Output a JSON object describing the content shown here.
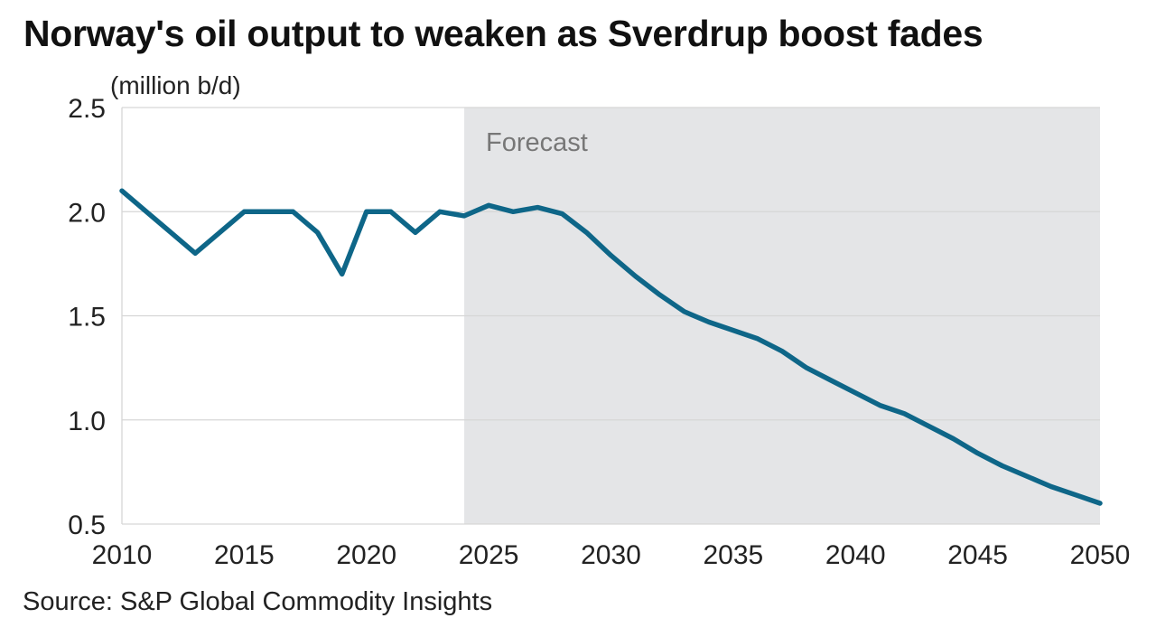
{
  "chart_data": {
    "type": "line",
    "title": "Norway's oil output to weaken as Sverdrup boost fades",
    "ylabel": "(million b/d)",
    "xlabel": "",
    "source": "Source: S&P Global Commodity Insights",
    "annotation": "Forecast",
    "forecast_start": 2024,
    "xlim": [
      2010,
      2050
    ],
    "ylim": [
      0.5,
      2.5
    ],
    "x_ticks": [
      2010,
      2015,
      2020,
      2025,
      2030,
      2035,
      2040,
      2045,
      2050
    ],
    "y_ticks": [
      0.5,
      1.0,
      1.5,
      2.0,
      2.5
    ],
    "y_tick_labels": [
      "0.5",
      "1.0",
      "1.5",
      "2.0",
      "2.5"
    ],
    "grid": true,
    "colors": {
      "line": "#0e6688",
      "forecast_band": "#e4e5e7",
      "grid": "#d6d6d6"
    },
    "series": [
      {
        "x": [
          2010,
          2011,
          2012,
          2013,
          2014,
          2015,
          2016,
          2017,
          2018,
          2019,
          2020,
          2021,
          2022,
          2023,
          2024,
          2025,
          2026,
          2027,
          2028,
          2029,
          2030,
          2031,
          2032,
          2033,
          2034,
          2035,
          2036,
          2037,
          2038,
          2039,
          2040,
          2041,
          2042,
          2043,
          2044,
          2045,
          2046,
          2047,
          2048,
          2049,
          2050
        ],
        "values": [
          2.1,
          2.0,
          1.9,
          1.8,
          1.9,
          2.0,
          2.0,
          2.0,
          1.9,
          1.7,
          2.0,
          2.0,
          1.9,
          2.0,
          1.98,
          2.03,
          2.0,
          2.02,
          1.99,
          1.9,
          1.79,
          1.69,
          1.6,
          1.52,
          1.47,
          1.43,
          1.39,
          1.33,
          1.25,
          1.19,
          1.13,
          1.07,
          1.03,
          0.97,
          0.91,
          0.84,
          0.78,
          0.73,
          0.68,
          0.64,
          0.6
        ]
      }
    ]
  }
}
